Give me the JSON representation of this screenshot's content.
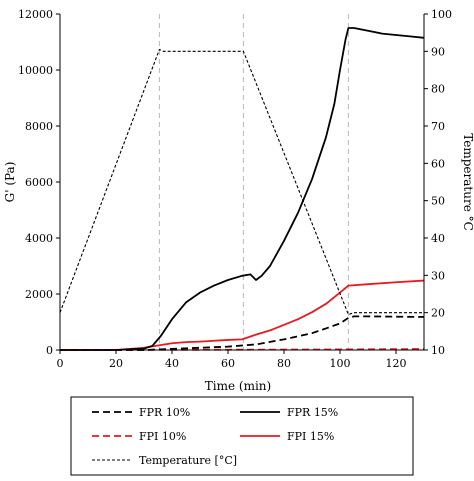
{
  "chart_data": {
    "type": "line",
    "title": "",
    "xlabel": "Time (min)",
    "ylabel_left": "G' (Pa)",
    "ylabel_right": "Temperature °C",
    "xlim": [
      0,
      130
    ],
    "ylim_left": [
      0,
      12000
    ],
    "ylim_right": [
      10,
      100
    ],
    "x_ticks": [
      "0",
      "20",
      "40",
      "60",
      "80",
      "100",
      "120"
    ],
    "y_left_ticks": [
      "0",
      "2000",
      "4000",
      "6000",
      "8000",
      "10000",
      "12000"
    ],
    "y_right_ticks": [
      "10",
      "20",
      "30",
      "40",
      "50",
      "60",
      "70",
      "80",
      "90",
      "100"
    ],
    "grid": false,
    "vertical_reference_lines_x": [
      35.5,
      65.5,
      103
    ],
    "legend_position": "bottom",
    "legend": [
      {
        "key": "fpr10",
        "label": "FPR 10%",
        "color": "#000000",
        "style": "dashed"
      },
      {
        "key": "fpr15",
        "label": "FPR 15%",
        "color": "#000000",
        "style": "solid"
      },
      {
        "key": "fpi10",
        "label": "FPI 10%",
        "color": "#e8191f",
        "style": "dashed"
      },
      {
        "key": "fpi15",
        "label": "FPI 15%",
        "color": "#e8191f",
        "style": "solid"
      },
      {
        "key": "temp",
        "label": "Temperature [°C]",
        "color": "#000000",
        "style": "dotted"
      }
    ],
    "series": [
      {
        "key": "fpr10",
        "name": "FPR 10%",
        "axis": "left",
        "x": [
          0,
          20,
          30,
          40,
          50,
          60,
          70,
          80,
          90,
          95,
          100,
          103,
          105,
          110,
          120,
          130
        ],
        "y": [
          0,
          0,
          0,
          40,
          80,
          120,
          200,
          380,
          600,
          770,
          950,
          1150,
          1200,
          1200,
          1190,
          1180
        ]
      },
      {
        "key": "fpr15",
        "name": "FPR 15%",
        "axis": "left",
        "x": [
          0,
          20,
          30,
          33,
          36,
          40,
          45,
          50,
          55,
          60,
          65,
          68,
          70,
          72,
          75,
          80,
          85,
          90,
          95,
          98,
          100,
          102,
          103,
          105,
          110,
          115,
          120,
          125,
          130
        ],
        "y": [
          0,
          0,
          50,
          150,
          500,
          1100,
          1700,
          2050,
          2300,
          2500,
          2650,
          2700,
          2500,
          2650,
          3000,
          3900,
          4900,
          6100,
          7600,
          8800,
          10000,
          11100,
          11500,
          11500,
          11400,
          11300,
          11250,
          11200,
          11150
        ]
      },
      {
        "key": "fpi10",
        "name": "FPI 10%",
        "axis": "left",
        "x": [
          0,
          20,
          40,
          60,
          80,
          100,
          110,
          120,
          130
        ],
        "y": [
          0,
          0,
          5,
          10,
          15,
          20,
          25,
          30,
          35
        ]
      },
      {
        "key": "fpi15",
        "name": "FPI 15%",
        "axis": "left",
        "x": [
          0,
          20,
          30,
          35,
          40,
          45,
          50,
          55,
          60,
          65,
          70,
          75,
          80,
          85,
          90,
          95,
          100,
          103,
          110,
          120,
          130
        ],
        "y": [
          0,
          0,
          80,
          160,
          240,
          280,
          300,
          330,
          360,
          380,
          550,
          700,
          900,
          1100,
          1350,
          1650,
          2050,
          2300,
          2350,
          2420,
          2480
        ]
      },
      {
        "key": "temp",
        "name": "Temperature [°C]",
        "axis": "right",
        "x": [
          0,
          35.5,
          37,
          65.5,
          103,
          105,
          130
        ],
        "y": [
          20,
          90.5,
          90,
          90,
          19.5,
          20,
          20
        ]
      }
    ]
  }
}
